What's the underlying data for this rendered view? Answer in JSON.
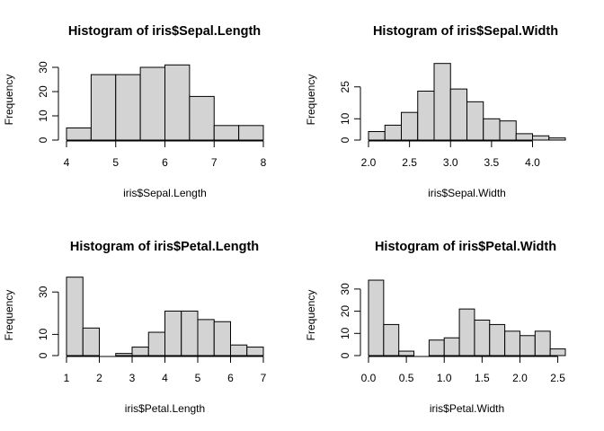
{
  "colors": {
    "bar_fill": "#d3d3d3",
    "bar_stroke": "#000000",
    "axis": "#000000",
    "background": "#ffffff"
  },
  "chart_data": [
    {
      "type": "bar",
      "title": "Histogram of iris$Sepal.Length",
      "xlabel": "iris$Sepal.Length",
      "ylabel": "Frequency",
      "bin_edges": [
        4,
        4.5,
        5,
        5.5,
        6,
        6.5,
        7,
        7.5,
        8
      ],
      "values": [
        5,
        27,
        27,
        30,
        31,
        18,
        6,
        6
      ],
      "xlim": [
        4,
        8
      ],
      "ylim": [
        0,
        31
      ],
      "x_ticks": [
        4,
        5,
        6,
        7,
        8
      ],
      "y_ticks": [
        0,
        10,
        20,
        30
      ],
      "x_tick_labels": [
        "4",
        "5",
        "6",
        "7",
        "8"
      ],
      "y_tick_labels": [
        "0",
        "10",
        "20",
        "30"
      ],
      "grid": false
    },
    {
      "type": "bar",
      "title": "Histogram of iris$Sepal.Width",
      "xlabel": "iris$Sepal.Width",
      "ylabel": "Frequency",
      "bin_edges": [
        2,
        2.2,
        2.4,
        2.6,
        2.8,
        3,
        3.2,
        3.4,
        3.6,
        3.8,
        4,
        4.2,
        4.4
      ],
      "values": [
        4,
        7,
        13,
        23,
        36,
        24,
        18,
        10,
        9,
        3,
        2,
        1
      ],
      "xlim": [
        2,
        4.4
      ],
      "ylim": [
        0,
        36
      ],
      "x_ticks": [
        2,
        2.5,
        3,
        3.5,
        4
      ],
      "y_ticks": [
        0,
        10,
        25
      ],
      "x_tick_labels": [
        "2.0",
        "2.5",
        "3.0",
        "3.5",
        "4.0"
      ],
      "y_tick_labels": [
        "0",
        "10",
        "25"
      ],
      "grid": false
    },
    {
      "type": "bar",
      "title": "Histogram of iris$Petal.Length",
      "xlabel": "iris$Petal.Length",
      "ylabel": "Frequency",
      "bin_edges": [
        1,
        1.5,
        2,
        2.5,
        3,
        3.5,
        4,
        4.5,
        5,
        5.5,
        6,
        6.5,
        7
      ],
      "values": [
        37,
        13,
        0,
        1,
        4,
        11,
        21,
        21,
        17,
        16,
        5,
        4
      ],
      "xlim": [
        1,
        7
      ],
      "ylim": [
        0,
        37
      ],
      "x_ticks": [
        1,
        2,
        3,
        4,
        5,
        6,
        7
      ],
      "y_ticks": [
        0,
        10,
        30
      ],
      "x_tick_labels": [
        "1",
        "2",
        "3",
        "4",
        "5",
        "6",
        "7"
      ],
      "y_tick_labels": [
        "0",
        "10",
        "30"
      ],
      "grid": false
    },
    {
      "type": "bar",
      "title": "Histogram of iris$Petal.Width",
      "xlabel": "iris$Petal.Width",
      "ylabel": "Frequency",
      "bin_edges": [
        0,
        0.2,
        0.4,
        0.6,
        0.8,
        1,
        1.2,
        1.4,
        1.6,
        1.8,
        2,
        2.2,
        2.4,
        2.6
      ],
      "values": [
        34,
        14,
        2,
        0,
        7,
        8,
        21,
        16,
        14,
        11,
        9,
        11,
        3
      ],
      "xlim": [
        0,
        2.6
      ],
      "ylim": [
        0,
        34
      ],
      "x_ticks": [
        0,
        0.5,
        1,
        1.5,
        2,
        2.5
      ],
      "y_ticks": [
        0,
        10,
        20,
        30
      ],
      "x_tick_labels": [
        "0.0",
        "0.5",
        "1.0",
        "1.5",
        "2.0",
        "2.5"
      ],
      "y_tick_labels": [
        "0",
        "10",
        "20",
        "30"
      ],
      "grid": false
    }
  ]
}
